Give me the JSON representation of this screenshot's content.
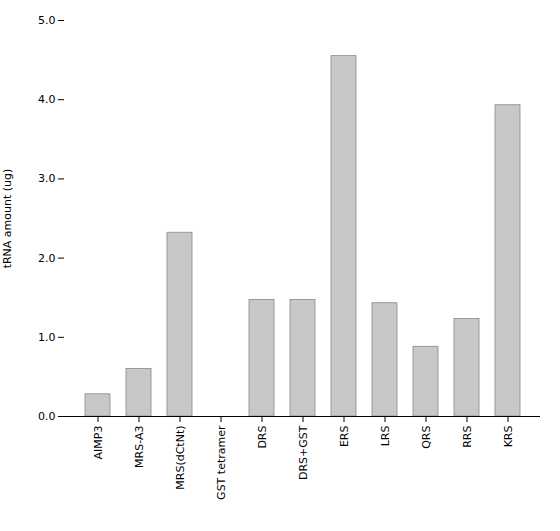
{
  "chart_data": {
    "type": "bar",
    "categories": [
      "AIMP3",
      "MRS-A3",
      "MRS(dCtNt)",
      "GST tetramer",
      "DRS",
      "DRS+GST",
      "ERS",
      "LRS",
      "QRS",
      "RRS",
      "KRS"
    ],
    "values": [
      0.28,
      0.6,
      2.32,
      0.0,
      1.47,
      1.47,
      4.55,
      1.43,
      0.88,
      1.23,
      3.93
    ],
    "color": "#c8c8c8",
    "ylabel": "tRNA amount (ug)",
    "ylim": [
      0,
      5
    ],
    "yticks": [
      0,
      1,
      2,
      3,
      4,
      5
    ],
    "grid": false
  }
}
